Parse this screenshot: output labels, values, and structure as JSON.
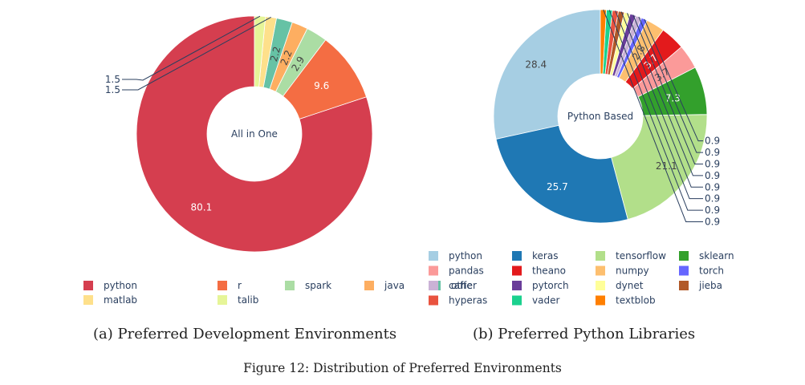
{
  "figure_caption": "Figure 12: Distribution of Preferred Environments",
  "chart_data": [
    {
      "type": "pie",
      "hole": true,
      "center_label": "All in One",
      "subcaption": "(a) Preferred Development Environments",
      "labels": [
        "python",
        "r",
        "spark",
        "java",
        "other",
        "matlab",
        "talib"
      ],
      "values": [
        80.1,
        9.6,
        2.9,
        2.2,
        2.2,
        1.5,
        1.5
      ],
      "colors": [
        "#d53e4f",
        "#f46d43",
        "#abdda4",
        "#fdae61",
        "#66c2a5",
        "#fee08b",
        "#e6f598"
      ],
      "legend_position": "bottom"
    },
    {
      "type": "pie",
      "hole": true,
      "center_label": "Python Based",
      "subcaption": "(b) Preferred Python Libraries",
      "labels": [
        "python",
        "keras",
        "tensorflow",
        "sklearn",
        "pandas",
        "theano",
        "numpy",
        "torch",
        "caffe",
        "pytorch",
        "dynet",
        "jieba",
        "hyperas",
        "vader",
        "textblob"
      ],
      "values": [
        28.4,
        25.7,
        21.1,
        7.3,
        3.7,
        3.7,
        2.8,
        0.9,
        0.9,
        0.9,
        0.9,
        0.9,
        0.9,
        0.9,
        0.9
      ],
      "colors": [
        "#a6cee3",
        "#1f78b4",
        "#b2df8a",
        "#33a02c",
        "#fb9a99",
        "#e31a1c",
        "#fdbf6f",
        "#6666ff",
        "#cab2d6",
        "#6a3d9a",
        "#ffff99",
        "#b15928",
        "#e9533f",
        "#1bd18e",
        "#ff7f00"
      ],
      "legend_position": "bottom"
    }
  ]
}
